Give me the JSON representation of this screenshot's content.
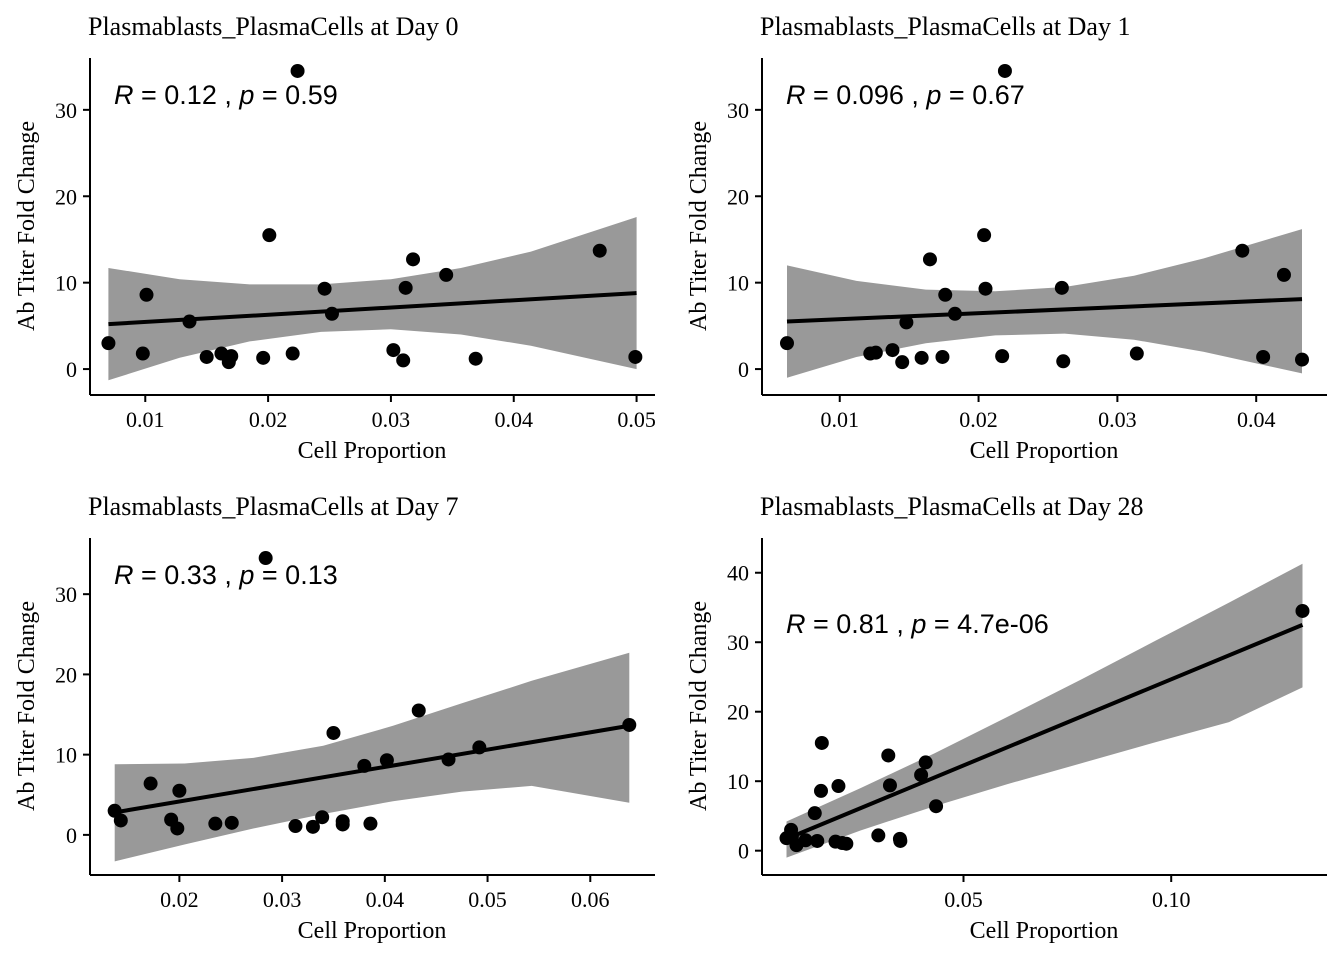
{
  "chart_data": [
    {
      "type": "scatter",
      "title": "Plasmablasts_PlasmaCells at Day 0",
      "xlabel": "Cell Proportion",
      "ylabel": "Ab Titer Fold Change",
      "xlim": [
        0.0055,
        0.0515
      ],
      "ylim": [
        -3,
        36
      ],
      "xticks": [
        0.01,
        0.02,
        0.03,
        0.04,
        0.05
      ],
      "xtick_labels": [
        "0.01",
        "0.02",
        "0.03",
        "0.04",
        "0.05"
      ],
      "yticks": [
        0,
        10,
        20,
        30
      ],
      "ytick_labels": [
        "0",
        "10",
        "20",
        "30"
      ],
      "stats": {
        "r_label": "R",
        "r_value": "0.12",
        "p_label": "p",
        "p_value": "0.59"
      },
      "fit": {
        "x": [
          0.007,
          0.05
        ],
        "y": [
          5.2,
          8.8
        ]
      },
      "band": {
        "x": [
          0.007,
          0.0128,
          0.0185,
          0.0243,
          0.03,
          0.0357,
          0.0414,
          0.05
        ],
        "upper": [
          11.7,
          10.4,
          9.8,
          9.8,
          10.4,
          11.7,
          13.6,
          17.6
        ],
        "lower": [
          -1.3,
          1.3,
          3.2,
          4.3,
          4.6,
          4.0,
          2.7,
          -0.0
        ]
      },
      "points": [
        {
          "x": 0.007,
          "y": 3.0
        },
        {
          "x": 0.0098,
          "y": 1.8
        },
        {
          "x": 0.0101,
          "y": 8.6
        },
        {
          "x": 0.0136,
          "y": 5.5
        },
        {
          "x": 0.015,
          "y": 1.4
        },
        {
          "x": 0.0162,
          "y": 1.8
        },
        {
          "x": 0.0168,
          "y": 0.8
        },
        {
          "x": 0.017,
          "y": 1.5
        },
        {
          "x": 0.0196,
          "y": 1.3
        },
        {
          "x": 0.0201,
          "y": 15.5
        },
        {
          "x": 0.022,
          "y": 1.8
        },
        {
          "x": 0.0224,
          "y": 34.5
        },
        {
          "x": 0.0246,
          "y": 9.3
        },
        {
          "x": 0.0252,
          "y": 6.4
        },
        {
          "x": 0.0302,
          "y": 2.2
        },
        {
          "x": 0.031,
          "y": 1.0
        },
        {
          "x": 0.0312,
          "y": 9.4
        },
        {
          "x": 0.0318,
          "y": 12.7
        },
        {
          "x": 0.0345,
          "y": 10.9
        },
        {
          "x": 0.0369,
          "y": 1.2
        },
        {
          "x": 0.047,
          "y": 13.7
        },
        {
          "x": 0.0499,
          "y": 1.4
        }
      ]
    },
    {
      "type": "scatter",
      "title": "Plasmablasts_PlasmaCells at Day 1",
      "xlabel": "Cell Proportion",
      "ylabel": "Ab Titer Fold Change",
      "xlim": [
        0.0044,
        0.0451
      ],
      "ylim": [
        -3,
        36
      ],
      "xticks": [
        0.01,
        0.02,
        0.03,
        0.04
      ],
      "xtick_labels": [
        "0.01",
        "0.02",
        "0.03",
        "0.04"
      ],
      "yticks": [
        0,
        10,
        20,
        30
      ],
      "ytick_labels": [
        "0",
        "10",
        "20",
        "30"
      ],
      "stats": {
        "r_label": "R",
        "r_value": "0.096",
        "p_label": "p",
        "p_value": "0.67"
      },
      "fit": {
        "x": [
          0.0062,
          0.0433
        ],
        "y": [
          5.5,
          8.1
        ]
      },
      "band": {
        "x": [
          0.0062,
          0.0112,
          0.0162,
          0.0212,
          0.0262,
          0.0312,
          0.0362,
          0.0433
        ],
        "upper": [
          12.0,
          10.2,
          9.2,
          9.0,
          9.5,
          10.8,
          12.8,
          16.2
        ],
        "lower": [
          -1.0,
          1.4,
          3.0,
          3.9,
          4.1,
          3.4,
          2.0,
          -0.5
        ]
      },
      "points": [
        {
          "x": 0.0062,
          "y": 3.0
        },
        {
          "x": 0.0122,
          "y": 1.8
        },
        {
          "x": 0.0126,
          "y": 1.9
        },
        {
          "x": 0.0138,
          "y": 2.2
        },
        {
          "x": 0.0145,
          "y": 0.8
        },
        {
          "x": 0.0148,
          "y": 5.4
        },
        {
          "x": 0.0159,
          "y": 1.3
        },
        {
          "x": 0.0165,
          "y": 12.7
        },
        {
          "x": 0.0174,
          "y": 1.4
        },
        {
          "x": 0.0176,
          "y": 8.6
        },
        {
          "x": 0.0183,
          "y": 6.4
        },
        {
          "x": 0.0204,
          "y": 15.5
        },
        {
          "x": 0.0205,
          "y": 9.3
        },
        {
          "x": 0.0217,
          "y": 1.5
        },
        {
          "x": 0.0219,
          "y": 34.5
        },
        {
          "x": 0.026,
          "y": 9.4
        },
        {
          "x": 0.0261,
          "y": 0.9
        },
        {
          "x": 0.0314,
          "y": 1.8
        },
        {
          "x": 0.039,
          "y": 13.7
        },
        {
          "x": 0.0405,
          "y": 1.4
        },
        {
          "x": 0.042,
          "y": 10.9
        },
        {
          "x": 0.0433,
          "y": 1.1
        }
      ]
    },
    {
      "type": "scatter",
      "title": "Plasmablasts_PlasmaCells at Day 7",
      "xlabel": "Cell Proportion",
      "ylabel": "Ab Titer Fold Change",
      "xlim": [
        0.0113,
        0.0663
      ],
      "ylim": [
        -5,
        37
      ],
      "xticks": [
        0.02,
        0.03,
        0.04,
        0.05,
        0.06
      ],
      "xtick_labels": [
        "0.02",
        "0.03",
        "0.04",
        "0.05",
        "0.06"
      ],
      "yticks": [
        0,
        10,
        20,
        30
      ],
      "ytick_labels": [
        "0",
        "10",
        "20",
        "30"
      ],
      "stats": {
        "r_label": "R",
        "r_value": "0.33",
        "p_label": "p",
        "p_value": "0.13"
      },
      "fit": {
        "x": [
          0.0137,
          0.0638
        ],
        "y": [
          2.8,
          13.6
        ]
      },
      "band": {
        "x": [
          0.0137,
          0.0205,
          0.0272,
          0.034,
          0.0408,
          0.0475,
          0.0543,
          0.0638
        ],
        "upper": [
          8.8,
          8.9,
          9.6,
          11.1,
          13.6,
          16.4,
          19.2,
          22.7
        ],
        "lower": [
          -3.3,
          -1.2,
          0.8,
          2.6,
          4.2,
          5.4,
          6.1,
          4.0
        ]
      },
      "points": [
        {
          "x": 0.0137,
          "y": 3.0
        },
        {
          "x": 0.0143,
          "y": 1.8
        },
        {
          "x": 0.0172,
          "y": 6.4
        },
        {
          "x": 0.0192,
          "y": 1.9
        },
        {
          "x": 0.0198,
          "y": 0.8
        },
        {
          "x": 0.02,
          "y": 5.5
        },
        {
          "x": 0.0235,
          "y": 1.4
        },
        {
          "x": 0.0251,
          "y": 1.5
        },
        {
          "x": 0.0284,
          "y": 34.5
        },
        {
          "x": 0.0313,
          "y": 1.1
        },
        {
          "x": 0.033,
          "y": 1.0
        },
        {
          "x": 0.0339,
          "y": 2.2
        },
        {
          "x": 0.035,
          "y": 12.7
        },
        {
          "x": 0.0359,
          "y": 1.3
        },
        {
          "x": 0.0359,
          "y": 1.7
        },
        {
          "x": 0.038,
          "y": 8.6
        },
        {
          "x": 0.0386,
          "y": 1.4
        },
        {
          "x": 0.0402,
          "y": 9.3
        },
        {
          "x": 0.0433,
          "y": 15.5
        },
        {
          "x": 0.0462,
          "y": 9.4
        },
        {
          "x": 0.0492,
          "y": 10.9
        },
        {
          "x": 0.0638,
          "y": 13.7
        }
      ]
    },
    {
      "type": "scatter",
      "title": "Plasmablasts_PlasmaCells at Day 28",
      "xlabel": "Cell Proportion",
      "ylabel": "Ab Titer Fold Change",
      "xlim": [
        0.0015,
        0.1375
      ],
      "ylim": [
        -3.5,
        45
      ],
      "xticks": [
        0.05,
        0.1
      ],
      "xtick_labels": [
        "0.05",
        "0.10"
      ],
      "yticks": [
        0,
        10,
        20,
        30,
        40
      ],
      "ytick_labels": [
        "0",
        "10",
        "20",
        "30",
        "40"
      ],
      "stats": {
        "r_label": "R",
        "r_value": "0.81",
        "p_label": "p",
        "p_value": "4.7e-06"
      },
      "fit": {
        "x": [
          0.0074,
          0.1316
        ],
        "y": [
          1.7,
          32.5
        ]
      },
      "band": {
        "x": [
          0.0074,
          0.0252,
          0.043,
          0.0607,
          0.0785,
          0.0962,
          0.1139,
          0.1316
        ],
        "upper": [
          4.2,
          9.0,
          14.0,
          19.3,
          24.7,
          30.2,
          35.7,
          41.3
        ],
        "lower": [
          -1.0,
          2.9,
          6.4,
          9.6,
          12.6,
          15.6,
          18.5,
          23.5
        ]
      },
      "points": [
        {
          "x": 0.0074,
          "y": 1.8
        },
        {
          "x": 0.0085,
          "y": 3.0
        },
        {
          "x": 0.0087,
          "y": 2.0
        },
        {
          "x": 0.0098,
          "y": 0.8
        },
        {
          "x": 0.012,
          "y": 1.5
        },
        {
          "x": 0.0142,
          "y": 5.4
        },
        {
          "x": 0.0148,
          "y": 1.4
        },
        {
          "x": 0.0157,
          "y": 8.6
        },
        {
          "x": 0.0159,
          "y": 15.5
        },
        {
          "x": 0.0192,
          "y": 1.3
        },
        {
          "x": 0.0199,
          "y": 9.3
        },
        {
          "x": 0.0208,
          "y": 1.1
        },
        {
          "x": 0.0218,
          "y": 1.0
        },
        {
          "x": 0.0295,
          "y": 2.2
        },
        {
          "x": 0.0319,
          "y": 13.7
        },
        {
          "x": 0.0323,
          "y": 9.4
        },
        {
          "x": 0.0347,
          "y": 1.7
        },
        {
          "x": 0.0348,
          "y": 1.4
        },
        {
          "x": 0.0398,
          "y": 10.9
        },
        {
          "x": 0.0409,
          "y": 12.7
        },
        {
          "x": 0.0434,
          "y": 6.4
        },
        {
          "x": 0.1316,
          "y": 34.5
        }
      ]
    }
  ]
}
